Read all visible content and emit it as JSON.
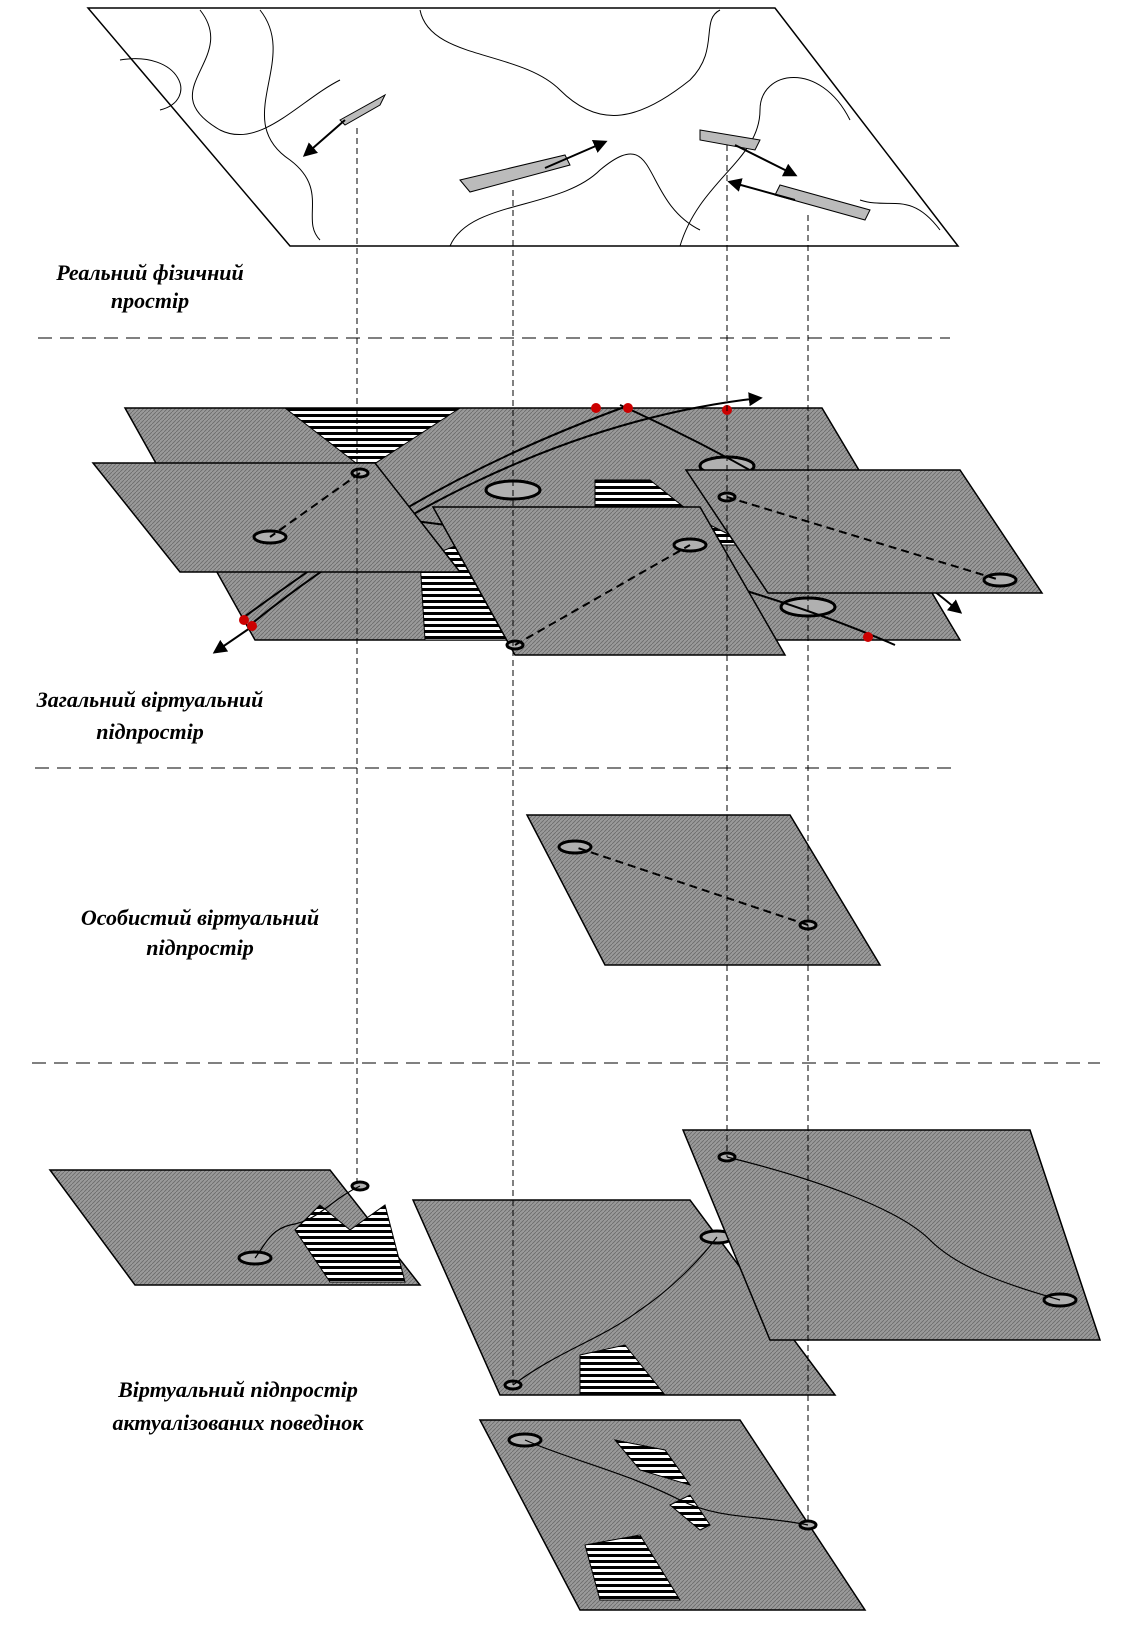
{
  "layers": [
    {
      "label": [
        "Реальний фізичний",
        "простір"
      ]
    },
    {
      "label": [
        "Загальний віртуальний",
        "підпростір"
      ]
    },
    {
      "label": [
        "Особистий віртуальний",
        "підпростір"
      ]
    },
    {
      "label": [
        "Віртуальний підпростір",
        "актуалізованих поведінок"
      ]
    }
  ]
}
